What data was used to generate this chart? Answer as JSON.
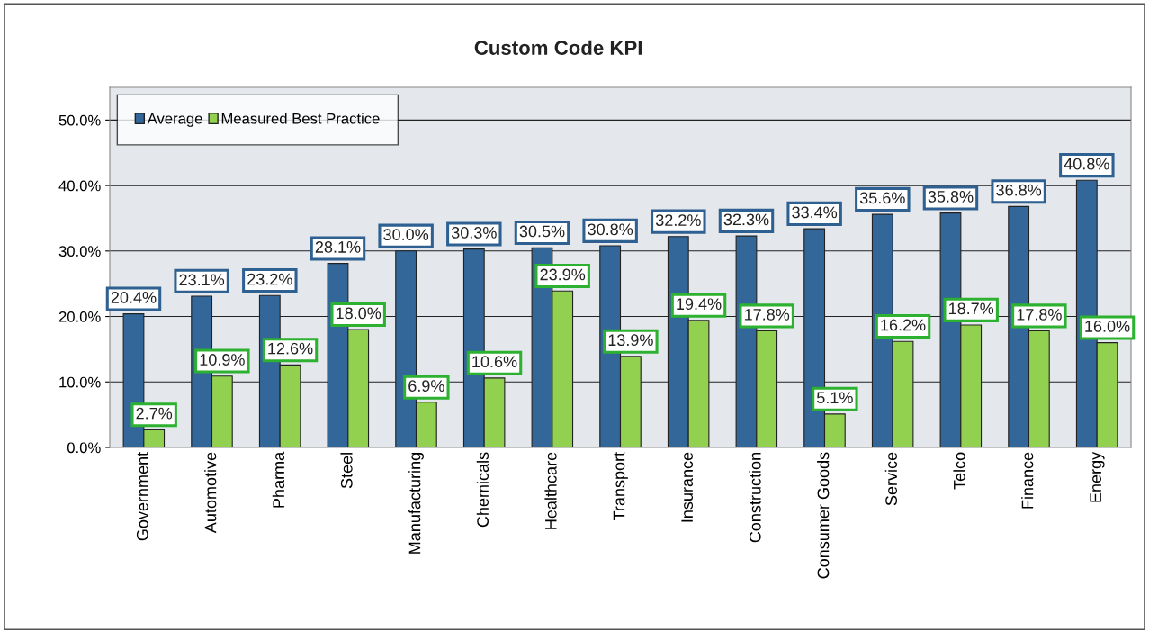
{
  "chart_data": {
    "type": "bar",
    "title": "Custom Code KPI",
    "categories": [
      "Government",
      "Automotive",
      "Pharma",
      "Steel",
      "Manufacturing",
      "Chemicals",
      "Healthcare",
      "Transport",
      "Insurance",
      "Construction",
      "Consumer Goods",
      "Service",
      "Telco",
      "Finance",
      "Energy"
    ],
    "series": [
      {
        "name": "Average",
        "color": "#336699",
        "values": [
          20.4,
          23.1,
          23.2,
          28.1,
          30.0,
          30.3,
          30.5,
          30.8,
          32.2,
          32.3,
          33.4,
          35.6,
          35.8,
          36.8,
          40.8
        ],
        "value_labels": [
          "20.4%",
          "23.1%",
          "23.2%",
          "28.1%",
          "30.0%",
          "30.3%",
          "30.5%",
          "30.8%",
          "32.2%",
          "32.3%",
          "33.4%",
          "35.6%",
          "35.8%",
          "36.8%",
          "40.8%"
        ]
      },
      {
        "name": "Measured Best Practice",
        "color": "#92d050",
        "values": [
          2.7,
          10.9,
          12.6,
          18.0,
          6.9,
          10.6,
          23.9,
          13.9,
          19.4,
          17.8,
          5.1,
          16.2,
          18.7,
          17.8,
          16.0
        ],
        "value_labels": [
          "2.7%",
          "10.9%",
          "12.6%",
          "18.0%",
          "6.9%",
          "10.6%",
          "23.9%",
          "13.9%",
          "19.4%",
          "17.8%",
          "5.1%",
          "16.2%",
          "18.7%",
          "17.8%",
          "16.0%"
        ]
      }
    ],
    "ylim": [
      0,
      55
    ],
    "yticks": [
      {
        "value": 0,
        "label": "0.0%"
      },
      {
        "value": 10,
        "label": "10.0%"
      },
      {
        "value": 20,
        "label": "20.0%"
      },
      {
        "value": 30,
        "label": "30.0%"
      },
      {
        "value": 40,
        "label": "40.0%"
      },
      {
        "value": 50,
        "label": "50.0%"
      }
    ],
    "grid": "y",
    "legend": "top left"
  }
}
